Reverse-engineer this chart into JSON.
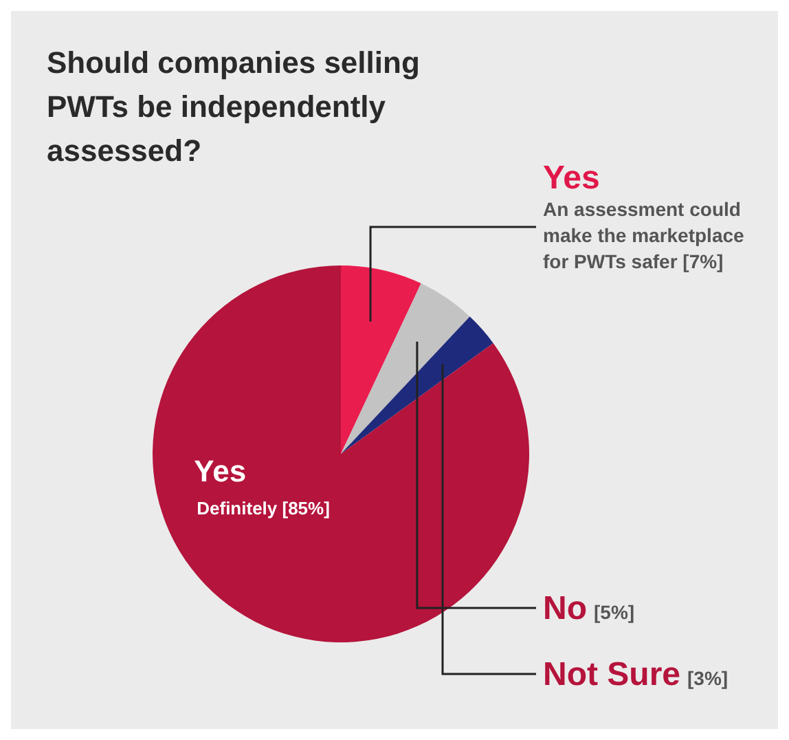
{
  "chart_data": {
    "type": "pie",
    "title": "Should companies selling PWTs be independently assessed?",
    "categories": [
      "Yes",
      "No",
      "Not Sure",
      "Yes"
    ],
    "values": [
      7,
      5,
      3,
      85
    ],
    "colors": [
      "#ea1d4f",
      "#c3c3c3",
      "#1e2b7c",
      "#b5143c"
    ],
    "value_labels": [
      "[7%]",
      "[5%]",
      "[3%]",
      "[85%]"
    ],
    "annotations": [
      "An assessment could make the marketplace for PWTs safer",
      null,
      null,
      "Definitely"
    ]
  }
}
